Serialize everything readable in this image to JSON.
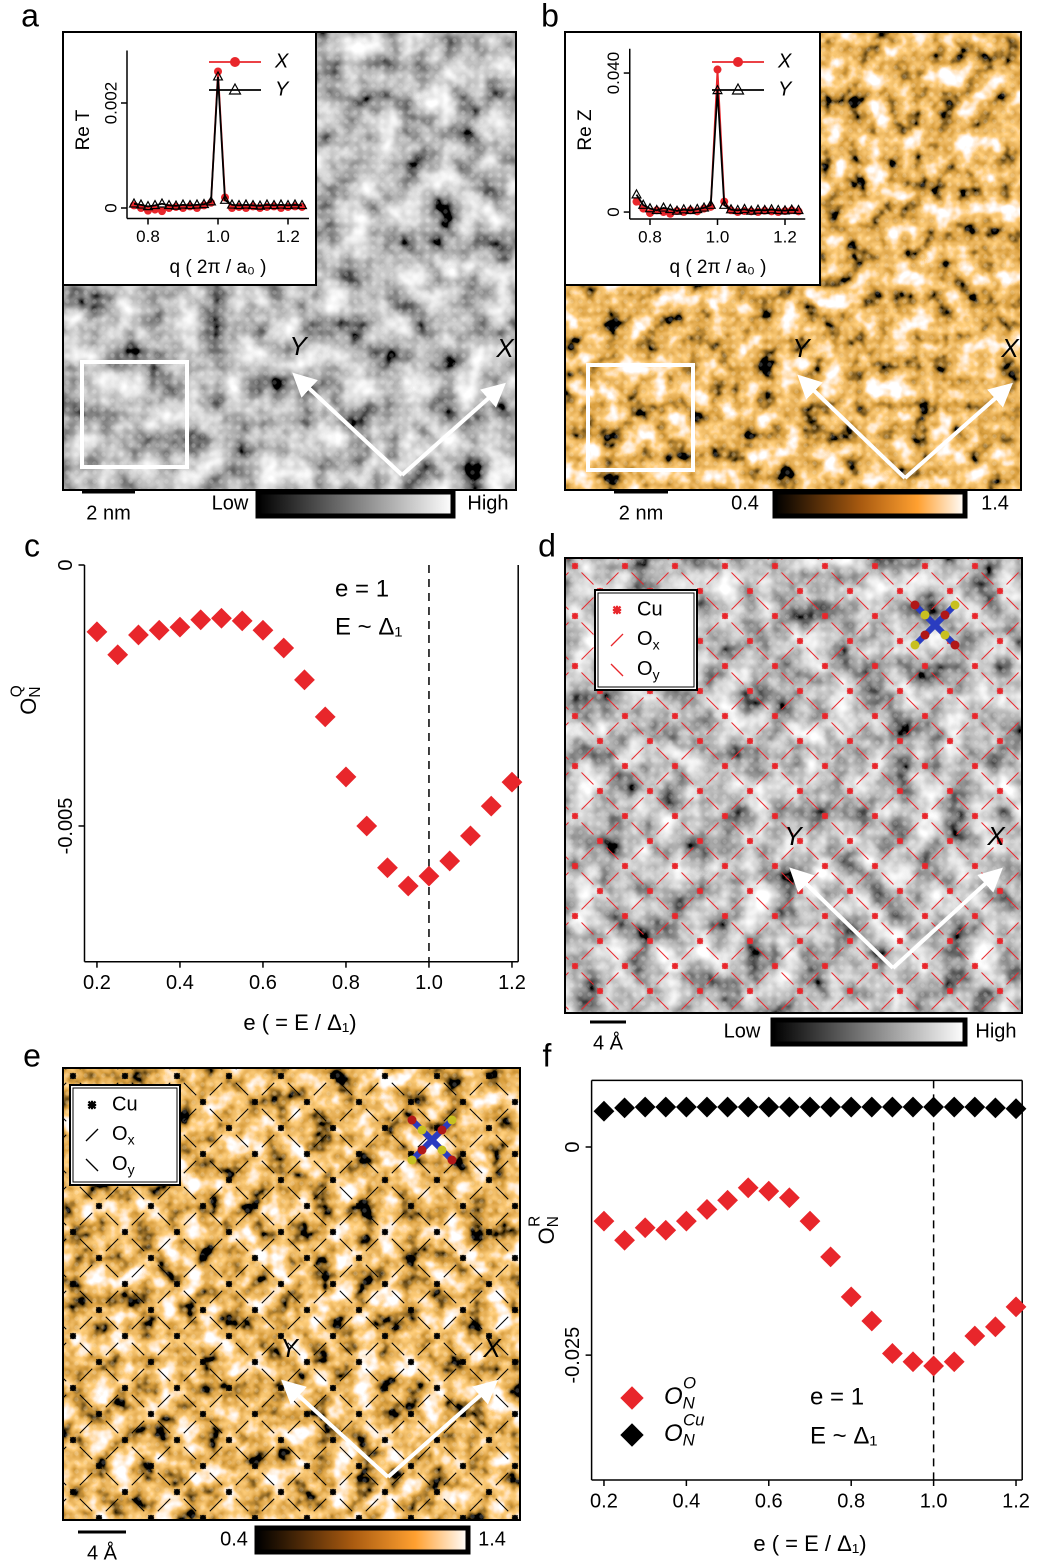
{
  "panel_labels": [
    "a",
    "b",
    "c",
    "d",
    "e",
    "f"
  ],
  "images": [
    {
      "colormap": "gray",
      "arrows": [
        "X",
        "Y"
      ],
      "scale_bar": "2 nm",
      "colorbar": [
        "Low",
        "High"
      ]
    },
    {
      "colormap": "orange",
      "arrows": [
        "X",
        "Y"
      ],
      "scale_bar": "2 nm",
      "colorbar": [
        "0.4",
        "1.4"
      ]
    },
    {
      "colormap": "gray",
      "arrows": [
        "X",
        "Y"
      ],
      "scale_bar": "4 Å",
      "colorbar": [
        "Low",
        "High"
      ],
      "lattice_color": "#e8262b",
      "legend": [
        "Cu",
        {
          "text": "O",
          "sub": "x"
        },
        {
          "text": "O",
          "sub": "y"
        }
      ]
    },
    {
      "colormap": "orange",
      "arrows": [
        "X",
        "Y"
      ],
      "scale_bar": "4 Å",
      "colorbar": [
        "0.4",
        "1.4"
      ],
      "lattice_color": "#000000",
      "legend": [
        "Cu",
        {
          "text": "O",
          "sub": "x"
        },
        {
          "text": "O",
          "sub": "y"
        }
      ]
    }
  ],
  "chart_data": [
    {
      "type": "line",
      "xlabel": "q ( 2π / a₀ )",
      "ylabel": "Re T",
      "x": [
        0.76,
        0.78,
        0.8,
        0.82,
        0.84,
        0.86,
        0.88,
        0.9,
        0.92,
        0.94,
        0.96,
        0.98,
        1.0,
        1.02,
        1.04,
        1.06,
        1.08,
        1.1,
        1.12,
        1.14,
        1.16,
        1.18,
        1.2,
        1.22,
        1.24
      ],
      "xlim": [
        0.74,
        1.26
      ],
      "xticks": [
        0.8,
        {
          "value": 1,
          "label": "1.0"
        },
        1.2
      ],
      "ylim": [
        -0.0002,
        0.003
      ],
      "yticks": [
        0,
        0.002
      ],
      "series": [
        {
          "name": "X",
          "color": "#e8262b",
          "marker": "circle",
          "values": [
            5e-05,
            0,
            -5e-05,
            -3e-05,
            -6e-05,
            0,
            2e-05,
            0,
            3e-05,
            0,
            5e-05,
            0.0001,
            0.0026,
            0.0002,
            0,
            2e-05,
            0,
            3e-05,
            0,
            2e-05,
            3e-05,
            0,
            2e-05,
            3e-05,
            2e-05
          ]
        },
        {
          "name": "Y",
          "color": "#000000",
          "marker": "triangle",
          "values": [
            8e-05,
            6e-05,
            3e-05,
            5e-05,
            8e-05,
            5e-05,
            4e-05,
            6e-05,
            5e-05,
            6e-05,
            7e-05,
            0.00012,
            0.0025,
            0.00015,
            6e-05,
            5e-05,
            6e-05,
            5e-05,
            4e-05,
            6e-05,
            5e-05,
            6e-05,
            5e-05,
            6e-05,
            5e-05
          ]
        }
      ]
    },
    {
      "type": "line",
      "xlabel": "q ( 2π / a₀ )",
      "ylabel": "Re Z",
      "x": [
        0.76,
        0.78,
        0.8,
        0.82,
        0.84,
        0.86,
        0.88,
        0.9,
        0.92,
        0.94,
        0.96,
        0.98,
        1.0,
        1.02,
        1.04,
        1.06,
        1.08,
        1.1,
        1.12,
        1.14,
        1.16,
        1.18,
        1.2,
        1.22,
        1.24
      ],
      "xlim": [
        0.74,
        1.26
      ],
      "xticks": [
        0.8,
        {
          "value": 1,
          "label": "1.0"
        },
        1.2
      ],
      "ylim": [
        -0.002,
        0.047
      ],
      "yticks": [
        0,
        {
          "value": 0.04,
          "label": "0.040"
        }
      ],
      "series": [
        {
          "name": "X",
          "color": "#e8262b",
          "marker": "circle",
          "values": [
            0.003,
            0.001,
            -0.0003,
            0.0005,
            0,
            -0.0005,
            0.0003,
            0,
            0.0005,
            0.0002,
            0.001,
            0.0015,
            0.041,
            0.003,
            0.0005,
            0,
            0.0003,
            0.0002,
            0,
            0.0004,
            0.0002,
            0,
            0.0003,
            0.0005,
            0.0002
          ]
        },
        {
          "name": "Y",
          "color": "#000000",
          "marker": "triangle",
          "values": [
            0.005,
            0.002,
            0.001,
            0.0005,
            0.0012,
            0.0008,
            0.0003,
            0.0007,
            0.0005,
            0.0008,
            0.0012,
            0.002,
            0.035,
            0.002,
            0.0007,
            0.0005,
            0.0008,
            0.0003,
            0.0006,
            0.0005,
            0.0007,
            0.0005,
            0.0004,
            0.0006,
            0.0005
          ]
        }
      ]
    },
    {
      "type": "scatter",
      "xlabel": "e ( = E / Δ₁)",
      "ylabel": {
        "text": "O",
        "sub": "N",
        "sup": "Q"
      },
      "annotations": [
        "e = 1",
        "E ~ Δ₁"
      ],
      "vline": 1,
      "x": [
        0.2,
        0.25,
        0.3,
        0.35,
        0.4,
        0.45,
        0.5,
        0.55,
        0.6,
        0.65,
        0.7,
        0.75,
        0.8,
        0.85,
        0.9,
        0.95,
        1.0,
        1.05,
        1.1,
        1.15,
        1.2
      ],
      "xlim": [
        0.17,
        1.215
      ],
      "xticks": [
        0.2,
        0.4,
        0.6,
        0.8,
        {
          "value": 1,
          "label": "1.0"
        },
        1.2
      ],
      "ylim": [
        -0.0076,
        0
      ],
      "yticks": [
        0,
        -0.005
      ],
      "color": "#e8262b",
      "marker": "diamond",
      "values": [
        -0.00128,
        -0.00172,
        -0.00134,
        -0.00125,
        -0.00119,
        -0.00105,
        -0.00102,
        -0.00107,
        -0.00125,
        -0.00159,
        -0.0022,
        -0.00291,
        -0.00406,
        -0.005,
        -0.0058,
        -0.00615,
        -0.00596,
        -0.00567,
        -0.00519,
        -0.00462,
        -0.00416
      ]
    },
    {
      "type": "scatter",
      "xlabel": "e ( = E / Δ₁)",
      "ylabel": {
        "text": "O",
        "sub": "N",
        "sup": "R"
      },
      "annotations": [
        "e = 1",
        "E ~ Δ₁"
      ],
      "vline": 1,
      "x": [
        0.2,
        0.25,
        0.3,
        0.35,
        0.4,
        0.45,
        0.5,
        0.55,
        0.6,
        0.65,
        0.7,
        0.75,
        0.8,
        0.85,
        0.9,
        0.95,
        1.0,
        1.05,
        1.1,
        1.15,
        1.2
      ],
      "xlim": [
        0.17,
        1.215
      ],
      "xticks": [
        0.2,
        0.4,
        0.6,
        0.8,
        {
          "value": 1,
          "label": "1.0"
        },
        1.2
      ],
      "ylim": [
        -0.04,
        0.008
      ],
      "yticks": [
        0,
        -0.025
      ],
      "series": [
        {
          "name": {
            "text": "O",
            "sub": "N",
            "sup": "O"
          },
          "color": "#e8262b",
          "marker": "diamond",
          "values": [
            -0.0089,
            -0.0112,
            -0.0097,
            -0.01,
            -0.0089,
            -0.0075,
            -0.0064,
            -0.0049,
            -0.0053,
            -0.0061,
            -0.0089,
            -0.0132,
            -0.018,
            -0.0209,
            -0.0248,
            -0.0258,
            -0.0263,
            -0.0258,
            -0.0227,
            -0.0216,
            -0.0192
          ]
        },
        {
          "name": {
            "text": "O",
            "sub": "N",
            "sup": "Cu"
          },
          "color": "#000000",
          "marker": "diamond",
          "values": [
            0.0043,
            0.0047,
            0.0048,
            0.0048,
            0.0048,
            0.0048,
            0.0048,
            0.0048,
            0.0048,
            0.0048,
            0.0048,
            0.0048,
            0.0048,
            0.0048,
            0.0048,
            0.0048,
            0.0048,
            0.0048,
            0.0048,
            0.0047,
            0.0046
          ]
        }
      ]
    }
  ]
}
